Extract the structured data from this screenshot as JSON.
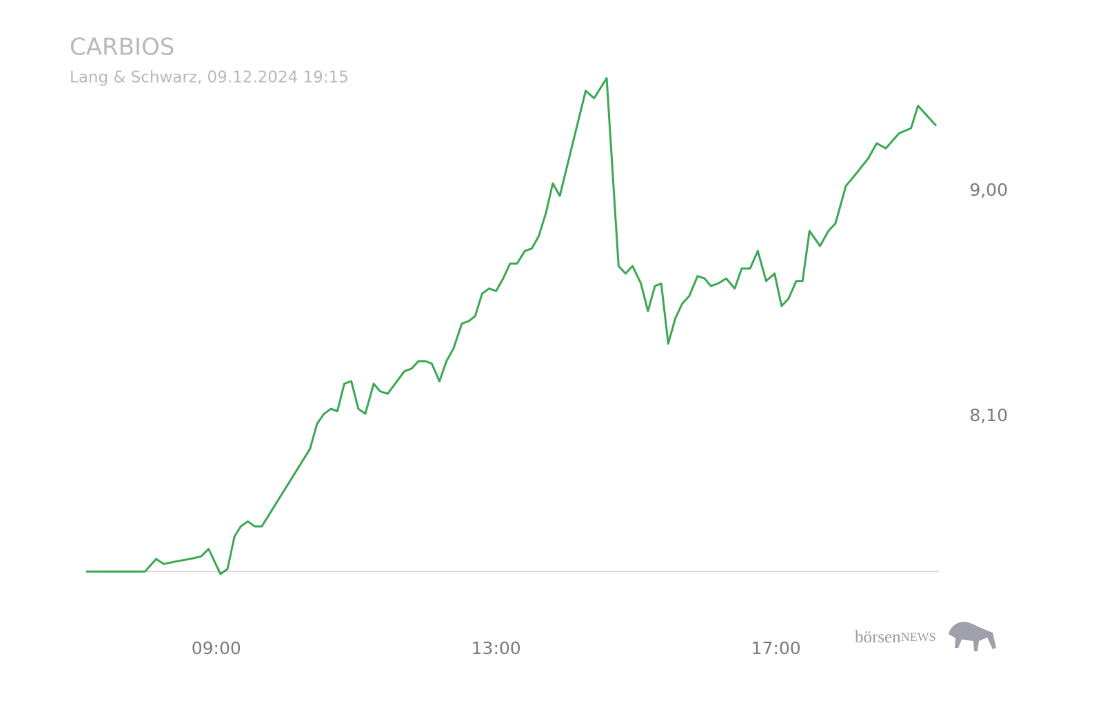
{
  "chart_data": {
    "type": "line",
    "title": "CARBIOS",
    "subtitle": "Lang & Schwarz, 09.12.2024 19:15",
    "logo": {
      "prefix": "börsen",
      "suffix": "NEWS"
    },
    "x": [
      7.14,
      7.98,
      8.14,
      8.25,
      8.42,
      8.62,
      8.78,
      8.89,
      9.06,
      9.16,
      9.26,
      9.35,
      9.45,
      9.55,
      9.65,
      10.34,
      10.44,
      10.54,
      10.64,
      10.73,
      10.83,
      10.93,
      11.03,
      11.13,
      11.25,
      11.34,
      11.45,
      11.69,
      11.79,
      11.89,
      11.99,
      12.08,
      12.19,
      12.29,
      12.39,
      12.51,
      12.61,
      12.7,
      12.8,
      12.9,
      13.0,
      13.1,
      13.2,
      13.3,
      13.41,
      13.51,
      13.61,
      13.71,
      13.81,
      13.91,
      14.28,
      14.4,
      14.58,
      14.75,
      14.85,
      14.95,
      15.07,
      15.17,
      15.27,
      15.36,
      15.46,
      15.56,
      15.66,
      15.76,
      15.88,
      15.98,
      16.07,
      16.17,
      16.29,
      16.41,
      16.51,
      16.63,
      16.74,
      16.86,
      16.98,
      17.08,
      17.18,
      17.29,
      17.38,
      17.48,
      17.63,
      17.75,
      17.85,
      18.0,
      18.12,
      18.32,
      18.44,
      18.57,
      18.76,
      18.93,
      19.03,
      19.29
    ],
    "series": [
      {
        "name": "CARBIOS",
        "color": "#3aa852",
        "values": [
          7.48,
          7.48,
          7.53,
          7.51,
          7.52,
          7.53,
          7.54,
          7.57,
          7.47,
          7.49,
          7.62,
          7.66,
          7.68,
          7.66,
          7.66,
          7.97,
          8.07,
          8.11,
          8.13,
          8.12,
          8.23,
          8.24,
          8.13,
          8.11,
          8.23,
          8.2,
          8.19,
          8.28,
          8.29,
          8.32,
          8.32,
          8.31,
          8.24,
          8.32,
          8.37,
          8.47,
          8.48,
          8.5,
          8.59,
          8.61,
          8.6,
          8.65,
          8.71,
          8.71,
          8.76,
          8.77,
          8.82,
          8.91,
          9.03,
          8.98,
          9.4,
          9.37,
          9.45,
          8.7,
          8.67,
          8.7,
          8.63,
          8.52,
          8.62,
          8.63,
          8.39,
          8.49,
          8.55,
          8.58,
          8.66,
          8.65,
          8.62,
          8.63,
          8.65,
          8.61,
          8.69,
          8.69,
          8.76,
          8.64,
          8.67,
          8.54,
          8.57,
          8.64,
          8.64,
          8.84,
          8.78,
          8.84,
          8.87,
          9.02,
          9.06,
          9.13,
          9.19,
          9.17,
          9.23,
          9.25,
          9.34,
          9.26
        ]
      }
    ],
    "reference_line": 7.48,
    "xlim": [
      7.14,
      19.29
    ],
    "ylim": [
      7.4,
      9.5
    ],
    "xticks": [
      {
        "value": 9,
        "label": "09:00"
      },
      {
        "value": 13,
        "label": "13:00"
      },
      {
        "value": 17,
        "label": "17:00"
      }
    ],
    "yticks": [
      {
        "value": 8.1,
        "label": "8,10"
      },
      {
        "value": 9,
        "label": "9,00"
      }
    ]
  }
}
